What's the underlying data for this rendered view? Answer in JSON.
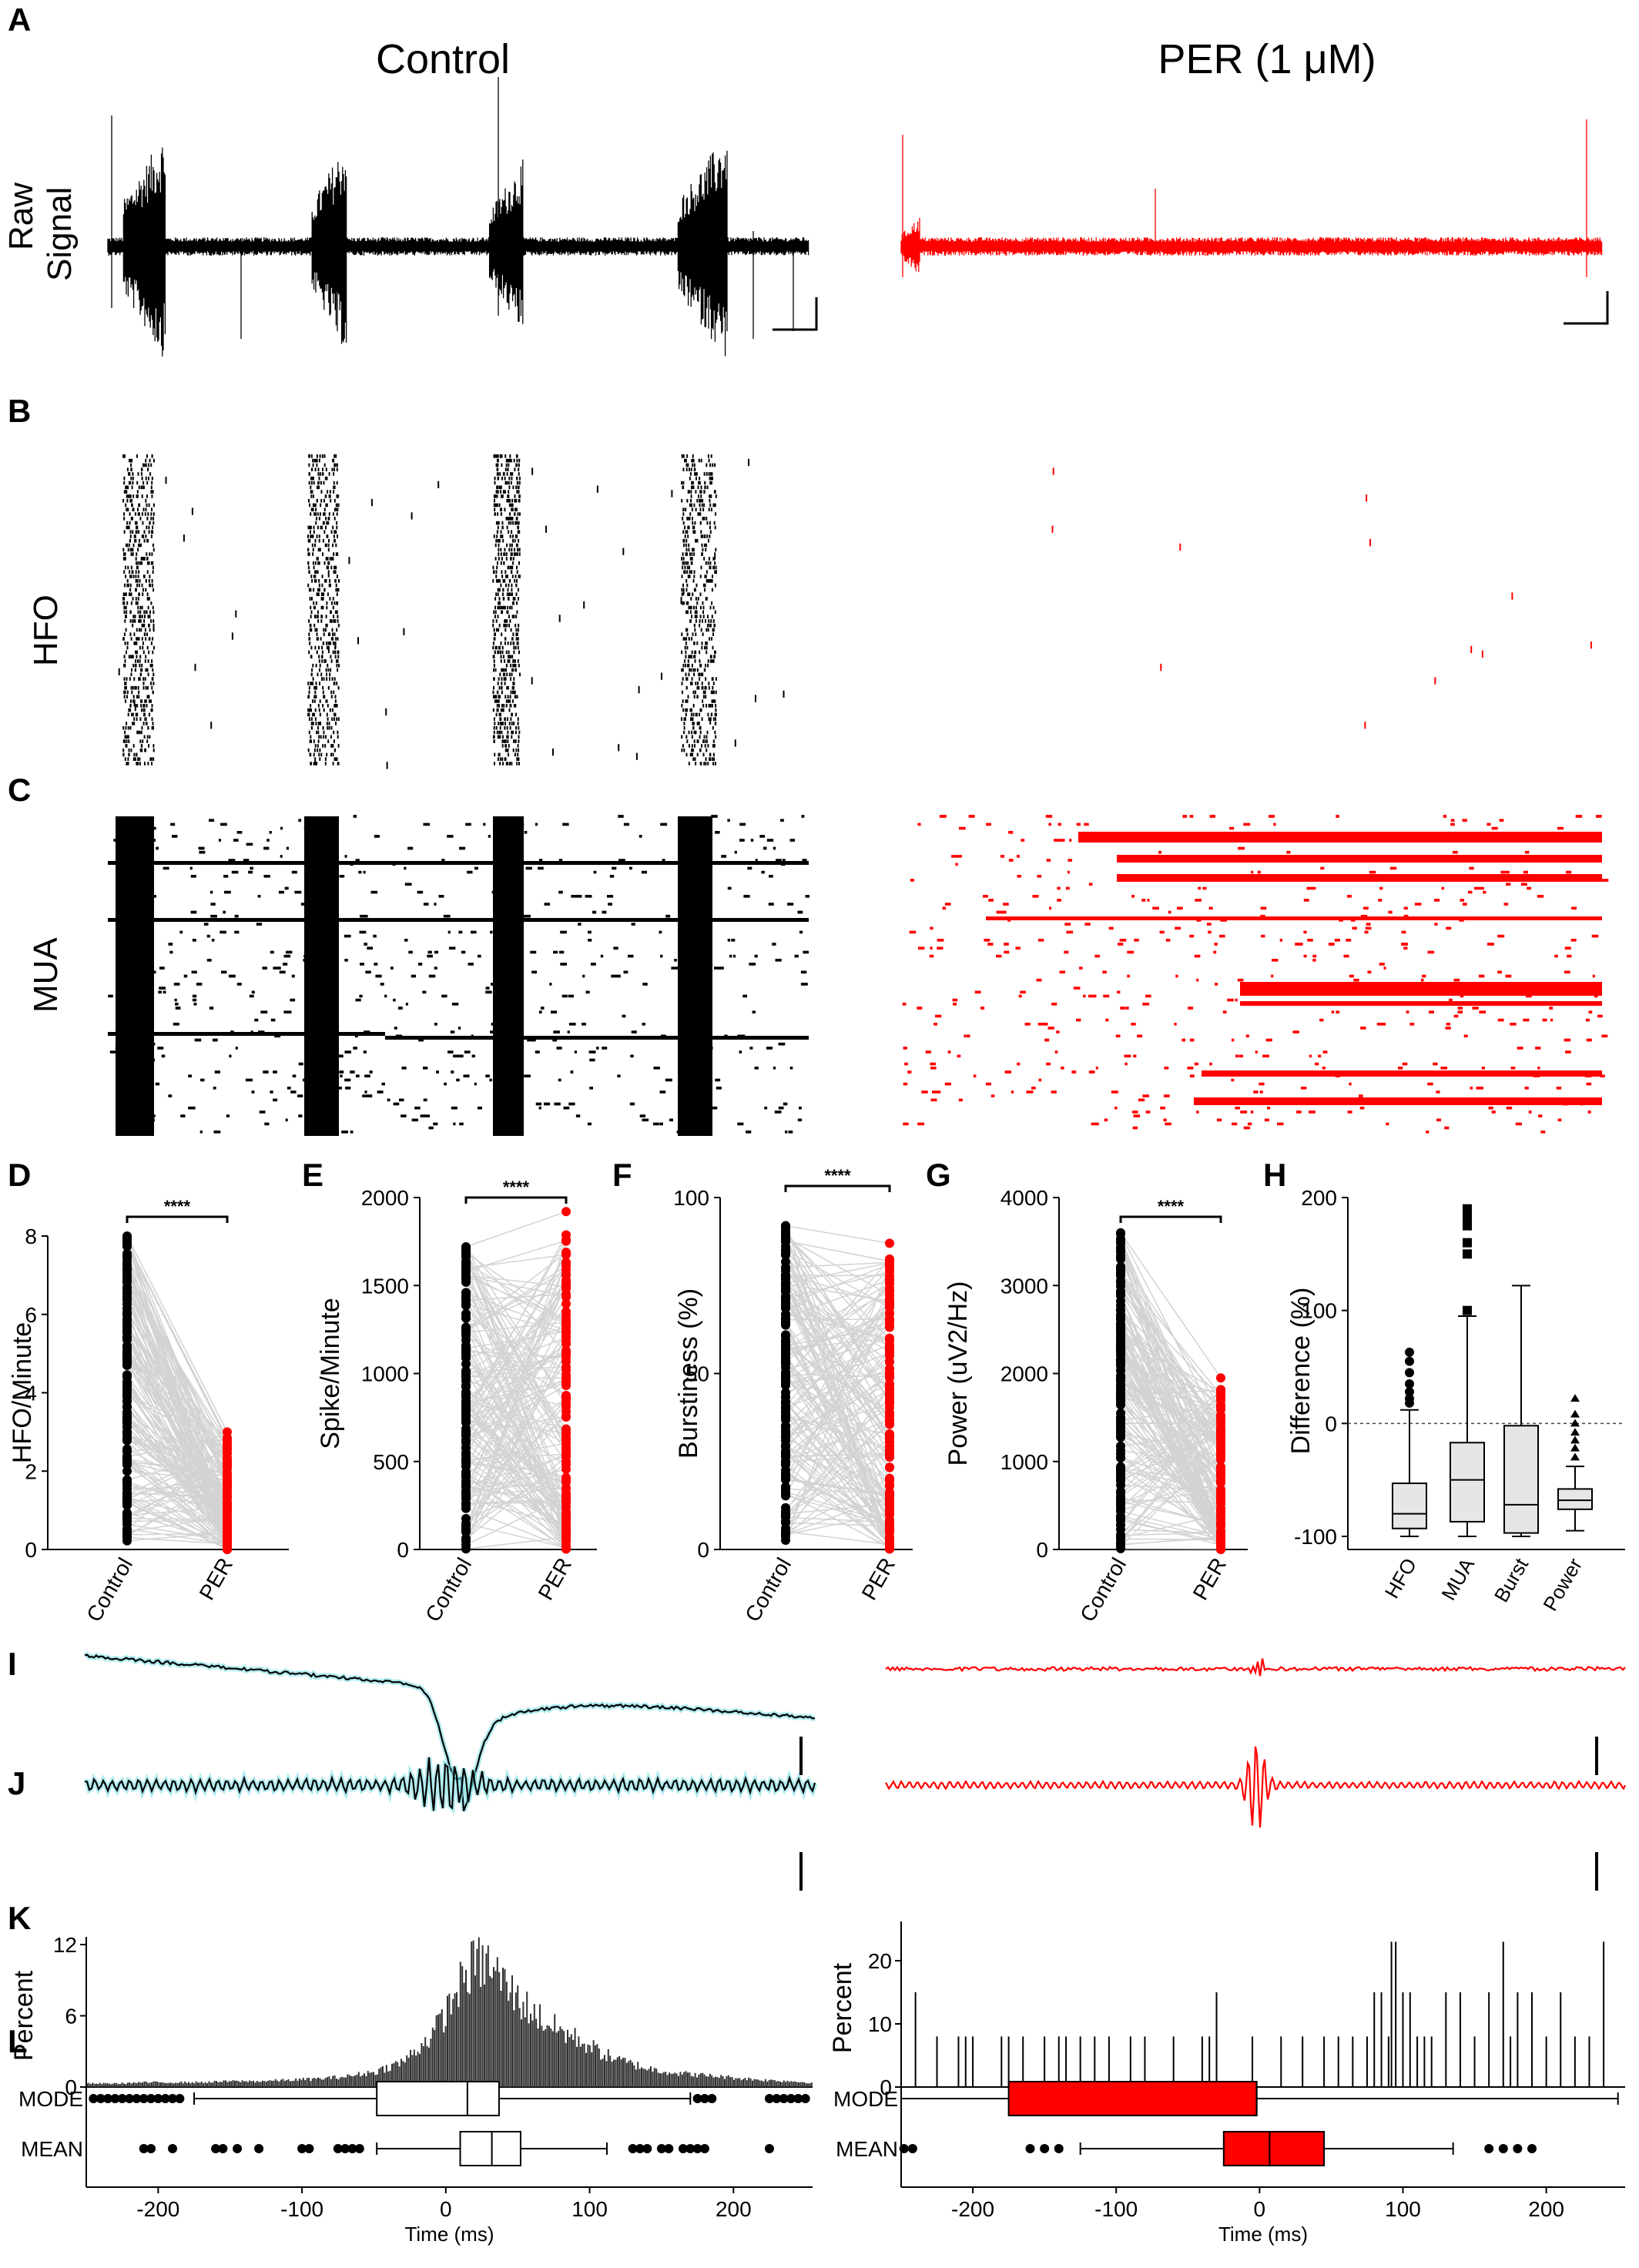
{
  "titles": {
    "control": "Control",
    "per": "PER (1 μM)"
  },
  "panel_letters": [
    "A",
    "B",
    "C",
    "D",
    "E",
    "F",
    "G",
    "H",
    "I",
    "J",
    "K",
    "L"
  ],
  "row_labels": {
    "raw_line1": "Raw",
    "raw_line2": "Signal",
    "hfo": "HFO",
    "mua": "MUA"
  },
  "colors": {
    "control": "#000000",
    "per": "#ff0000",
    "paired_lines": "#d3d3d3",
    "trace_halo": "#7fe0e6",
    "box_fill": "#e6e6e6"
  },
  "significance": "****",
  "chart_data": [
    {
      "panel": "D",
      "type": "scatter",
      "ylabel": "HFO/Minute",
      "categories": [
        "Control",
        "PER"
      ],
      "ylim": [
        0,
        8
      ],
      "yticks": [
        "0",
        "2",
        "4",
        "6",
        "8"
      ],
      "series": [
        {
          "name": "Control",
          "range": [
            0.1,
            8.0
          ],
          "max": 8.0
        },
        {
          "name": "PER",
          "range": [
            0.0,
            3.0
          ],
          "max": 3.0
        }
      ]
    },
    {
      "panel": "E",
      "type": "scatter",
      "ylabel": "Spike/Minute",
      "categories": [
        "Control",
        "PER"
      ],
      "ylim": [
        0,
        2000
      ],
      "yticks": [
        "0",
        "500",
        "1000",
        "1500",
        "2000"
      ],
      "series": [
        {
          "name": "Control",
          "range": [
            0,
            1720
          ],
          "max": 1720
        },
        {
          "name": "PER",
          "range": [
            0,
            1920
          ],
          "max": 1920
        }
      ]
    },
    {
      "panel": "F",
      "type": "scatter",
      "ylabel": "Burstiness (%)",
      "categories": [
        "Control",
        "PER"
      ],
      "ylim": [
        0,
        100
      ],
      "yticks": [
        "0",
        "50",
        "100"
      ],
      "series": [
        {
          "name": "Control",
          "range": [
            2,
            92
          ],
          "max": 92
        },
        {
          "name": "PER",
          "range": [
            0,
            87
          ],
          "max": 87
        }
      ]
    },
    {
      "panel": "G",
      "type": "scatter",
      "ylabel": "Power (uV2/Hz)",
      "categories": [
        "Control",
        "PER"
      ],
      "ylim": [
        0,
        4000
      ],
      "yticks": [
        "0",
        "1000",
        "2000",
        "3000",
        "4000"
      ],
      "series": [
        {
          "name": "Control",
          "range": [
            0,
            3600
          ],
          "max": 3600
        },
        {
          "name": "PER",
          "range": [
            0,
            1950
          ],
          "max": 1950
        }
      ]
    },
    {
      "panel": "H",
      "type": "box",
      "ylabel": "Difference (%)",
      "ylim": [
        -110,
        210
      ],
      "yticks": [
        "-100",
        "0",
        "100",
        "200"
      ],
      "categories": [
        "HFO",
        "MUA",
        "Burst",
        "Power"
      ],
      "boxes": [
        {
          "name": "HFO",
          "whisker_low": -100,
          "q1": -93,
          "median": -80,
          "q3": -53,
          "whisker_high": 12,
          "outliers": [
            18,
            22,
            28,
            35,
            45,
            55,
            63
          ]
        },
        {
          "name": "MUA",
          "whisker_low": -100,
          "q1": -87,
          "median": -50,
          "q3": -17,
          "whisker_high": 95,
          "outliers": [
            100,
            150,
            160,
            175,
            180,
            185,
            190
          ]
        },
        {
          "name": "Burst",
          "whisker_low": -100,
          "q1": -97,
          "median": -72,
          "q3": -2,
          "whisker_high": 122,
          "outliers": []
        },
        {
          "name": "Power",
          "whisker_low": -95,
          "q1": -76,
          "median": -68,
          "q3": -58,
          "whisker_high": -38,
          "outliers": [
            -30,
            -22,
            -15,
            -8,
            0,
            8,
            22
          ]
        }
      ]
    },
    {
      "panel": "K-Control",
      "type": "bar",
      "ylabel": "Percent",
      "ylim": [
        0,
        12
      ],
      "yticks": [
        "0",
        "6",
        "12"
      ],
      "x": [
        -250,
        -230,
        -210,
        -190,
        -170,
        -150,
        -130,
        -110,
        -90,
        -70,
        -50,
        -30,
        -10,
        0,
        10,
        20,
        30,
        40,
        50,
        60,
        70,
        80,
        90,
        100,
        110,
        120,
        140,
        160,
        180,
        200,
        220,
        240,
        250
      ],
      "values": [
        0.3,
        0.3,
        0.4,
        0.4,
        0.4,
        0.5,
        0.5,
        0.6,
        0.7,
        0.9,
        1.3,
        2.2,
        4.5,
        6.5,
        9.0,
        10.8,
        10.5,
        9.0,
        7.5,
        6.5,
        5.5,
        4.8,
        4.2,
        3.5,
        2.8,
        2.3,
        1.6,
        1.2,
        1.0,
        0.8,
        0.6,
        0.5,
        0.4
      ]
    },
    {
      "panel": "K-PER",
      "type": "bar",
      "ylabel": "Percent",
      "ylim": [
        0,
        25
      ],
      "yticks": [
        "0",
        "10",
        "20"
      ],
      "x": [
        -240,
        -225,
        -210,
        -205,
        -200,
        -180,
        -175,
        -165,
        -150,
        -140,
        -135,
        -125,
        -115,
        -105,
        -90,
        -80,
        -60,
        -40,
        -35,
        -30,
        -5,
        15,
        30,
        45,
        55,
        65,
        75,
        80,
        85,
        90,
        92,
        95,
        100,
        105,
        110,
        115,
        120,
        130,
        140,
        150,
        160,
        170,
        175,
        180,
        190,
        200,
        210,
        220,
        230,
        240
      ],
      "values": [
        15,
        8,
        8,
        8,
        8,
        8,
        8,
        8,
        8,
        8,
        8,
        8,
        8,
        8,
        8,
        8,
        8,
        8,
        8,
        15,
        8,
        8,
        8,
        8,
        8,
        8,
        8,
        15,
        15,
        8,
        23,
        23,
        15,
        15,
        8,
        8,
        8,
        15,
        15,
        8,
        15,
        23,
        8,
        15,
        15,
        8,
        15,
        8,
        8,
        23
      ]
    },
    {
      "panel": "L-Control",
      "type": "box",
      "xlabel": "Time (ms)",
      "xlim": [
        -250,
        255
      ],
      "xticks": [
        "-200",
        "-100",
        "0",
        "100",
        "200"
      ],
      "categories": [
        "MODE",
        "MEAN"
      ],
      "boxes": [
        {
          "name": "MODE",
          "whisker_low": -175,
          "q1": -48,
          "median": 15,
          "q3": 37,
          "whisker_high": 170
        },
        {
          "name": "MEAN",
          "whisker_low": -48,
          "q1": 10,
          "median": 32,
          "q3": 52,
          "whisker_high": 112
        }
      ]
    },
    {
      "panel": "L-PER",
      "type": "box",
      "xlabel": "Time (ms)",
      "xlim": [
        -250,
        255
      ],
      "xticks": [
        "-200",
        "-100",
        "0",
        "100",
        "200"
      ],
      "categories": [
        "MODE",
        "MEAN"
      ],
      "boxes": [
        {
          "name": "MODE",
          "whisker_low": -250,
          "q1": -175,
          "median": -2,
          "q3": -2,
          "whisker_high": 250
        },
        {
          "name": "MEAN",
          "whisker_low": -125,
          "q1": -25,
          "median": 7,
          "q3": 45,
          "whisker_high": 135
        }
      ]
    }
  ]
}
